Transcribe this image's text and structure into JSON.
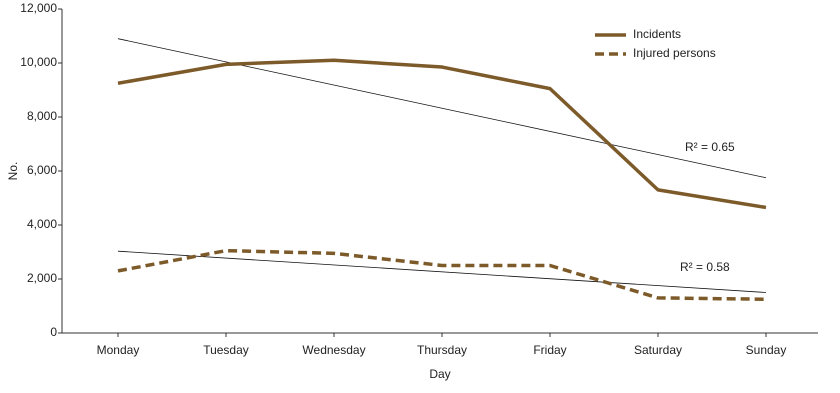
{
  "chart_data": {
    "type": "line",
    "x_label": "Day",
    "y_label": "No.",
    "categories": [
      "Monday",
      "Tuesday",
      "Wednesday",
      "Thursday",
      "Friday",
      "Saturday",
      "Sunday"
    ],
    "series": [
      {
        "name": "Incidents",
        "color": "#7d5a29",
        "dash": false,
        "values": [
          9250,
          9950,
          10100,
          9850,
          9050,
          5300,
          4650
        ]
      },
      {
        "name": "Injured persons",
        "color": "#7d5a29",
        "dash": true,
        "values": [
          2300,
          3050,
          2950,
          2500,
          2500,
          1300,
          1250
        ]
      }
    ],
    "trend_lines": [
      {
        "values": [
          10900,
          5750
        ],
        "annotation": "R² = 0.65"
      },
      {
        "values": [
          3030,
          1500
        ],
        "annotation": "R² = 0.58"
      }
    ],
    "ylim": [
      0,
      12000
    ],
    "yticks": [
      0,
      {
        "value": 2000,
        "label": "2,000"
      },
      {
        "value": 4000,
        "label": "4,000"
      },
      {
        "value": 6000,
        "label": "6,000"
      },
      {
        "value": 8000,
        "label": "8,000"
      },
      {
        "value": 10000,
        "label": "10,000"
      },
      {
        "value": 12000,
        "label": "12,000"
      }
    ],
    "grid": false
  }
}
